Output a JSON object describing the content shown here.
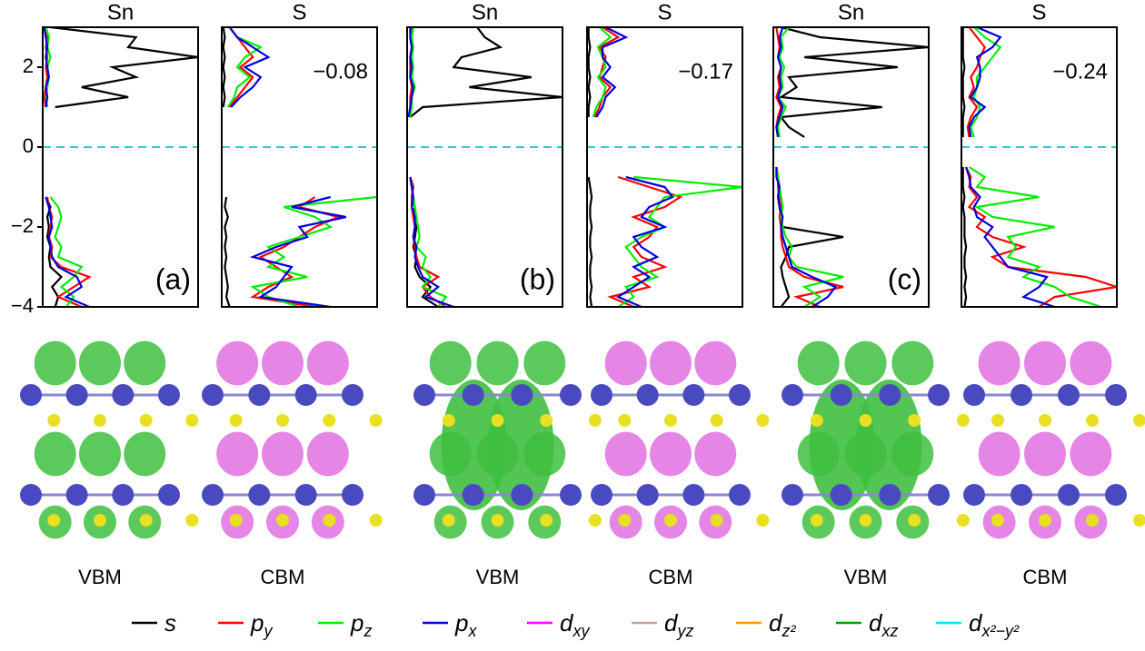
{
  "chart_data": [
    {
      "type": "line",
      "title": "Sn",
      "label": "(a)",
      "ylim": [
        -4,
        3
      ],
      "xlim": [
        0,
        1
      ],
      "yticks": [
        {
          "value": -4,
          "label": "−4"
        },
        {
          "value": -2,
          "label": "−2"
        },
        0,
        2
      ],
      "reference_line": 0,
      "y": [
        -4,
        -3.75,
        -3.5,
        -3.25,
        -3,
        -2.75,
        -2.5,
        -2.25,
        -2,
        -1.75,
        -1.5,
        -1.25,
        -1,
        -0.75,
        -0.5,
        -0.25,
        0,
        0.25,
        0.5,
        0.75,
        1,
        1.25,
        1.5,
        1.75,
        2,
        2.25,
        2.5,
        2.75,
        3
      ],
      "series": [
        {
          "color": "#000000",
          "values": [
            0.08,
            0.1,
            0.06,
            0.12,
            0.05,
            0.04,
            0.05,
            0.03,
            0.04,
            0.03,
            0.05,
            0.02,
            null,
            null,
            null,
            null,
            null,
            null,
            null,
            null,
            0.08,
            0.55,
            0.25,
            0.6,
            0.45,
            1.0,
            0.55,
            0.6,
            0.05
          ]
        },
        {
          "color": "#ff0000",
          "values": [
            0.25,
            0.1,
            0.2,
            0.3,
            0.12,
            0.05,
            0.06,
            0.04,
            0.05,
            0.06,
            0.04,
            0.03,
            null,
            null,
            null,
            null,
            null,
            null,
            null,
            null,
            0.02,
            0.01,
            0.02,
            0.03,
            0.02,
            0.03,
            0.02,
            0.03,
            0.01
          ]
        },
        {
          "color": "#00ee00",
          "values": [
            0.15,
            0.2,
            0.12,
            0.2,
            0.25,
            0.1,
            0.12,
            0.08,
            0.1,
            0.12,
            0.1,
            0.05,
            null,
            null,
            null,
            null,
            null,
            null,
            null,
            null,
            0.03,
            0.02,
            0.03,
            0.04,
            0.03,
            0.05,
            0.03,
            0.04,
            0.02
          ]
        },
        {
          "color": "#0000dd",
          "values": [
            0.3,
            0.15,
            0.25,
            0.22,
            0.1,
            0.06,
            0.05,
            0.04,
            0.06,
            0.05,
            0.04,
            0.02,
            null,
            null,
            null,
            null,
            null,
            null,
            null,
            null,
            0.02,
            0.03,
            0.02,
            0.04,
            0.03,
            0.02,
            0.03,
            0.02,
            0.01
          ]
        }
      ]
    },
    {
      "type": "line",
      "title": "S",
      "annotation": "−0.08",
      "ylim": [
        -4,
        3
      ],
      "xlim": [
        0,
        1
      ],
      "reference_line": 0,
      "y": [
        -4,
        -3.75,
        -3.5,
        -3.25,
        -3,
        -2.75,
        -2.5,
        -2.25,
        -2,
        -1.75,
        -1.5,
        -1.25,
        -1,
        -0.75,
        -0.5,
        -0.25,
        0,
        0.25,
        0.5,
        0.75,
        1,
        1.25,
        1.5,
        1.75,
        2,
        2.25,
        2.5,
        2.75,
        3
      ],
      "series": [
        {
          "color": "#000000",
          "values": [
            0.05,
            0.03,
            0.04,
            0.03,
            0.02,
            0.03,
            0.02,
            0.03,
            0.02,
            0.04,
            0.02,
            0.03,
            null,
            null,
            null,
            null,
            null,
            null,
            null,
            null,
            0.01,
            0.02,
            0.01,
            0.02,
            0.01,
            0.02,
            0.01,
            0.02,
            0.01
          ]
        },
        {
          "color": "#ff0000",
          "values": [
            0.6,
            0.2,
            0.3,
            0.45,
            0.35,
            0.25,
            0.4,
            0.5,
            0.6,
            0.75,
            0.5,
            0.6,
            null,
            null,
            null,
            null,
            null,
            null,
            null,
            null,
            0.05,
            0.1,
            0.15,
            0.2,
            0.12,
            0.2,
            0.15,
            0.1,
            0.05
          ]
        },
        {
          "color": "#00ee00",
          "values": [
            0.5,
            0.3,
            0.2,
            0.55,
            0.3,
            0.4,
            0.3,
            0.5,
            0.7,
            0.6,
            0.4,
            1.0,
            null,
            null,
            null,
            null,
            null,
            null,
            null,
            null,
            0.04,
            0.08,
            0.1,
            0.18,
            0.1,
            0.15,
            0.25,
            0.1,
            0.05
          ]
        },
        {
          "color": "#0000dd",
          "values": [
            0.7,
            0.25,
            0.35,
            0.4,
            0.45,
            0.2,
            0.35,
            0.55,
            0.5,
            0.8,
            0.45,
            0.7,
            null,
            null,
            null,
            null,
            null,
            null,
            null,
            null,
            0.06,
            0.12,
            0.2,
            0.25,
            0.15,
            0.3,
            0.2,
            0.1,
            0.05
          ]
        }
      ]
    },
    {
      "type": "line",
      "title": "Sn",
      "label": "(b)",
      "ylim": [
        -4,
        3
      ],
      "xlim": [
        0,
        1
      ],
      "reference_line": 0,
      "y": [
        -4,
        -3.75,
        -3.5,
        -3.25,
        -3,
        -2.75,
        -2.5,
        -2.25,
        -2,
        -1.75,
        -1.5,
        -1.25,
        -1,
        -0.75,
        -0.5,
        -0.25,
        0,
        0.25,
        0.5,
        0.75,
        1,
        1.25,
        1.5,
        1.75,
        2,
        2.25,
        2.5,
        2.75,
        3
      ],
      "series": [
        {
          "color": "#000000",
          "values": [
            0.2,
            0.1,
            0.15,
            0.08,
            0.05,
            0.06,
            0.04,
            0.05,
            0.06,
            0.04,
            0.05,
            0.03,
            0.04,
            0.02,
            null,
            null,
            null,
            null,
            null,
            0.02,
            0.1,
            1.0,
            0.4,
            0.8,
            0.3,
            0.35,
            0.6,
            0.5,
            0.45
          ]
        },
        {
          "color": "#ff0000",
          "values": [
            0.25,
            0.15,
            0.1,
            0.2,
            0.08,
            0.06,
            0.05,
            0.04,
            0.05,
            0.04,
            0.03,
            0.03,
            0.04,
            0.02,
            null,
            null,
            null,
            null,
            null,
            0.01,
            0.02,
            0.02,
            0.03,
            0.02,
            0.02,
            0.02,
            0.03,
            0.02,
            0.03
          ]
        },
        {
          "color": "#00ee00",
          "values": [
            0.2,
            0.25,
            0.1,
            0.15,
            0.1,
            0.12,
            0.06,
            0.08,
            0.07,
            0.06,
            0.05,
            0.04,
            0.03,
            0.02,
            null,
            null,
            null,
            null,
            null,
            0.02,
            0.03,
            0.03,
            0.05,
            0.03,
            0.04,
            0.03,
            0.04,
            0.03,
            0.04
          ]
        },
        {
          "color": "#0000dd",
          "values": [
            0.3,
            0.12,
            0.2,
            0.1,
            0.07,
            0.05,
            0.06,
            0.04,
            0.05,
            0.05,
            0.03,
            0.04,
            0.03,
            0.02,
            null,
            null,
            null,
            null,
            null,
            0.01,
            0.02,
            0.03,
            0.04,
            0.02,
            0.03,
            0.02,
            0.03,
            0.02,
            0.02
          ]
        }
      ]
    },
    {
      "type": "line",
      "title": "S",
      "annotation": "−0.17",
      "ylim": [
        -4,
        3
      ],
      "xlim": [
        0,
        1
      ],
      "reference_line": 0,
      "y": [
        -4,
        -3.75,
        -3.5,
        -3.25,
        -3,
        -2.75,
        -2.5,
        -2.25,
        -2,
        -1.75,
        -1.5,
        -1.25,
        -1,
        -0.75,
        -0.5,
        -0.25,
        0,
        0.25,
        0.5,
        0.75,
        1,
        1.25,
        1.5,
        1.75,
        2,
        2.25,
        2.5,
        2.75,
        3
      ],
      "series": [
        {
          "color": "#000000",
          "values": [
            0.03,
            0.02,
            0.03,
            0.02,
            0.02,
            0.03,
            0.02,
            0.02,
            0.03,
            0.02,
            0.02,
            0.03,
            0.02,
            0.01,
            null,
            null,
            null,
            null,
            null,
            0.01,
            0.01,
            0.02,
            0.01,
            0.02,
            0.01,
            0.01,
            0.02,
            0.01,
            0.01
          ]
        },
        {
          "color": "#ff0000",
          "values": [
            0.3,
            0.15,
            0.4,
            0.3,
            0.5,
            0.35,
            0.3,
            0.4,
            0.45,
            0.3,
            0.5,
            0.6,
            0.4,
            0.2,
            null,
            null,
            null,
            null,
            null,
            0.05,
            0.08,
            0.1,
            0.15,
            0.08,
            0.1,
            0.12,
            0.08,
            0.2,
            0.1
          ]
        },
        {
          "color": "#00ee00",
          "values": [
            0.2,
            0.3,
            0.25,
            0.45,
            0.35,
            0.3,
            0.25,
            0.35,
            0.5,
            0.4,
            0.45,
            0.5,
            1.0,
            0.3,
            null,
            null,
            null,
            null,
            null,
            0.04,
            0.06,
            0.1,
            0.12,
            0.07,
            0.12,
            0.1,
            0.07,
            0.15,
            0.08
          ]
        },
        {
          "color": "#0000dd",
          "values": [
            0.35,
            0.2,
            0.3,
            0.4,
            0.3,
            0.45,
            0.35,
            0.3,
            0.5,
            0.35,
            0.4,
            0.55,
            0.5,
            0.25,
            null,
            null,
            null,
            null,
            null,
            0.06,
            0.1,
            0.12,
            0.18,
            0.1,
            0.15,
            0.1,
            0.1,
            0.25,
            0.12
          ]
        }
      ]
    },
    {
      "type": "line",
      "title": "Sn",
      "label": "(c)",
      "ylim": [
        -4,
        3
      ],
      "xlim": [
        0,
        1
      ],
      "reference_line": 0,
      "y": [
        -4,
        -3.75,
        -3.5,
        -3.25,
        -3,
        -2.75,
        -2.5,
        -2.25,
        -2,
        -1.75,
        -1.5,
        -1.25,
        -1,
        -0.75,
        -0.5,
        -0.25,
        0,
        0.25,
        0.5,
        0.75,
        1,
        1.25,
        1.5,
        1.75,
        2,
        2.25,
        2.5,
        2.75,
        3
      ],
      "series": [
        {
          "color": "#000000",
          "values": [
            0.05,
            0.1,
            0.08,
            0.06,
            0.05,
            0.08,
            0.1,
            0.45,
            0.06,
            0.05,
            0.04,
            0.03,
            0.04,
            0.03,
            0.02,
            null,
            null,
            0.2,
            0.1,
            0.05,
            0.7,
            0.05,
            0.15,
            0.1,
            0.8,
            0.2,
            1.0,
            0.3,
            0.05
          ]
        },
        {
          "color": "#ff0000",
          "values": [
            0.3,
            0.15,
            0.45,
            0.2,
            0.1,
            0.08,
            0.06,
            0.05,
            0.05,
            0.04,
            0.05,
            0.04,
            0.03,
            0.03,
            0.02,
            null,
            null,
            0.03,
            0.02,
            0.03,
            0.05,
            0.02,
            0.04,
            0.03,
            0.05,
            0.03,
            0.04,
            0.03,
            0.02
          ]
        },
        {
          "color": "#00ee00",
          "values": [
            0.2,
            0.3,
            0.2,
            0.45,
            0.15,
            0.1,
            0.12,
            0.08,
            0.06,
            0.05,
            0.06,
            0.05,
            0.04,
            0.03,
            0.02,
            null,
            null,
            0.04,
            0.03,
            0.05,
            0.08,
            0.03,
            0.06,
            0.05,
            0.07,
            0.04,
            0.06,
            0.05,
            0.1
          ]
        },
        {
          "color": "#0000dd",
          "values": [
            0.25,
            0.35,
            0.4,
            0.25,
            0.12,
            0.1,
            0.08,
            0.06,
            0.05,
            0.06,
            0.04,
            0.03,
            0.04,
            0.02,
            0.02,
            null,
            null,
            0.03,
            0.02,
            0.04,
            0.06,
            0.03,
            0.05,
            0.04,
            0.05,
            0.03,
            0.05,
            0.04,
            0.06
          ]
        }
      ]
    },
    {
      "type": "line",
      "title": "S",
      "annotation": "−0.24",
      "ylim": [
        -4,
        3
      ],
      "xlim": [
        0,
        1
      ],
      "reference_line": 0,
      "y": [
        -4,
        -3.75,
        -3.5,
        -3.25,
        -3,
        -2.75,
        -2.5,
        -2.25,
        -2,
        -1.75,
        -1.5,
        -1.25,
        -1,
        -0.75,
        -0.5,
        -0.25,
        0,
        0.25,
        0.5,
        0.75,
        1,
        1.25,
        1.5,
        1.75,
        2,
        2.25,
        2.5,
        2.75,
        3
      ],
      "series": [
        {
          "color": "#000000",
          "values": [
            0.02,
            0.03,
            0.02,
            0.03,
            0.02,
            0.02,
            0.03,
            0.02,
            0.02,
            0.02,
            0.01,
            0.02,
            0.01,
            0.01,
            0.01,
            null,
            null,
            0.01,
            0.01,
            0.01,
            0.02,
            0.01,
            0.01,
            0.01,
            0.02,
            0.01,
            0.01,
            0.01,
            0.01
          ]
        },
        {
          "color": "#ff0000",
          "values": [
            0.5,
            0.6,
            1.0,
            0.8,
            0.3,
            0.2,
            0.4,
            0.2,
            0.1,
            0.15,
            0.05,
            0.1,
            0.05,
            0.06,
            0.03,
            null,
            null,
            0.05,
            0.04,
            0.06,
            0.1,
            0.05,
            0.08,
            0.06,
            0.1,
            0.12,
            0.15,
            0.1,
            0.05
          ]
        },
        {
          "color": "#00ee00",
          "values": [
            0.9,
            0.7,
            0.6,
            0.4,
            0.5,
            0.3,
            0.35,
            0.3,
            0.6,
            0.2,
            0.1,
            0.5,
            0.1,
            0.15,
            0.05,
            null,
            null,
            0.08,
            0.06,
            0.1,
            0.12,
            0.08,
            0.1,
            0.1,
            0.15,
            0.2,
            0.25,
            0.15,
            0.08
          ]
        },
        {
          "color": "#0000dd",
          "values": [
            0.6,
            0.4,
            0.5,
            0.55,
            0.3,
            0.25,
            0.2,
            0.15,
            0.2,
            0.1,
            0.08,
            0.12,
            0.06,
            0.05,
            0.03,
            null,
            null,
            0.06,
            0.05,
            0.08,
            0.15,
            0.06,
            0.1,
            0.12,
            0.12,
            0.1,
            0.2,
            0.25,
            0.1
          ]
        }
      ]
    }
  ],
  "images": [
    "VBM",
    "CBM",
    "VBM",
    "CBM",
    "VBM",
    "CBM"
  ],
  "legend": [
    {
      "name": "s",
      "color": "#000000"
    },
    {
      "name": "p",
      "sub": "y",
      "color": "#ff0000"
    },
    {
      "name": "p",
      "sub": "z",
      "color": "#00ee00"
    },
    {
      "name": "p",
      "sub": "x",
      "color": "#0000dd"
    },
    {
      "name": "d",
      "sub": "xy",
      "color": "#ff00ff"
    },
    {
      "name": "d",
      "sub": "yz",
      "color": "#c4a09a"
    },
    {
      "name": "d",
      "sub": "z²",
      "color": "#ff9900"
    },
    {
      "name": "d",
      "sub": "xz",
      "color": "#009900"
    },
    {
      "name": "d",
      "sub": "x²−y²",
      "color": "#00e5ee"
    }
  ]
}
